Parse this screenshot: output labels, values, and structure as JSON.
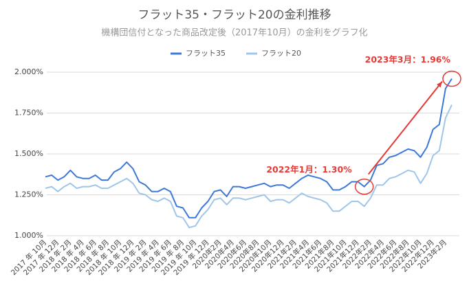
{
  "chart_data": {
    "type": "line",
    "title": "フラット35・フラット20の金利推移",
    "subtitle": "機構団信付となった商品改定後（2017年10月）の金利をグラフ化",
    "categories": [
      "2017 年 10月",
      null,
      "2017 年 12月",
      null,
      "2018 年 2月",
      null,
      "2018 年 4月",
      null,
      "2018 年 6月",
      null,
      "2018 年 8月",
      null,
      "2018 年 10月",
      null,
      "2018 年 12月",
      null,
      "2019 年 2月",
      null,
      "2019 年 4月",
      null,
      "2019 年 6月",
      null,
      "2019 年 8月",
      null,
      "2019 年 10月",
      null,
      "2019 年 12月",
      null,
      "2020年2月",
      null,
      "2020年4月",
      null,
      "2020年6月",
      null,
      "2020年8月",
      null,
      "2020年10月",
      null,
      "2020年12月",
      null,
      "2021年2月",
      null,
      "2021年4月",
      null,
      "2021年6月",
      null,
      "2021年8月",
      null,
      "2021年10月",
      null,
      "2021年12月",
      null,
      "2022年2月",
      null,
      "2022年4月",
      null,
      "2022年6月",
      null,
      "2022年8月",
      null,
      "2022年10月",
      null,
      "2022年12月",
      null,
      "2023年2月",
      null
    ],
    "series": [
      {
        "name": "フラット35",
        "color": "#3c78d8",
        "values": [
          1.36,
          1.37,
          1.34,
          1.36,
          1.4,
          1.36,
          1.35,
          1.35,
          1.37,
          1.34,
          1.34,
          1.39,
          1.41,
          1.45,
          1.41,
          1.33,
          1.31,
          1.27,
          1.27,
          1.29,
          1.27,
          1.18,
          1.17,
          1.11,
          1.11,
          1.17,
          1.21,
          1.27,
          1.28,
          1.24,
          1.3,
          1.3,
          1.29,
          1.3,
          1.31,
          1.32,
          1.3,
          1.31,
          1.31,
          1.29,
          1.32,
          1.35,
          1.37,
          1.36,
          1.35,
          1.33,
          1.28,
          1.28,
          1.3,
          1.33,
          1.33,
          1.3,
          1.34,
          1.43,
          1.44,
          1.48,
          1.49,
          1.51,
          1.53,
          1.52,
          1.48,
          1.54,
          1.65,
          1.68,
          1.9,
          1.96
        ]
      },
      {
        "name": "フラット20",
        "color": "#9fc5e8",
        "values": [
          1.29,
          1.3,
          1.27,
          1.3,
          1.32,
          1.29,
          1.3,
          1.3,
          1.31,
          1.29,
          1.29,
          1.31,
          1.33,
          1.35,
          1.32,
          1.26,
          1.25,
          1.22,
          1.21,
          1.23,
          1.21,
          1.12,
          1.11,
          1.05,
          1.06,
          1.12,
          1.16,
          1.22,
          1.23,
          1.19,
          1.23,
          1.23,
          1.22,
          1.23,
          1.24,
          1.25,
          1.21,
          1.22,
          1.22,
          1.2,
          1.23,
          1.26,
          1.24,
          1.23,
          1.22,
          1.2,
          1.15,
          1.15,
          1.18,
          1.21,
          1.21,
          1.18,
          1.23,
          1.31,
          1.31,
          1.35,
          1.36,
          1.38,
          1.4,
          1.39,
          1.32,
          1.38,
          1.49,
          1.52,
          1.72,
          1.8
        ]
      }
    ],
    "ylim": [
      1.0,
      2.0
    ],
    "yticks": [
      {
        "value": 1.0,
        "label": "1.000%"
      },
      {
        "value": 1.25,
        "label": "1.250%"
      },
      {
        "value": 1.5,
        "label": "1.500%"
      },
      {
        "value": 1.75,
        "label": "1.750%"
      },
      {
        "value": 2.0,
        "label": "2.000%"
      }
    ],
    "grid": true,
    "legend": "top",
    "annotations": [
      {
        "text": "2022年1月：1.30%",
        "index": 51,
        "color": "#e53935"
      },
      {
        "text": "2023年3月：1.96%",
        "index": 65,
        "color": "#e53935"
      }
    ]
  }
}
